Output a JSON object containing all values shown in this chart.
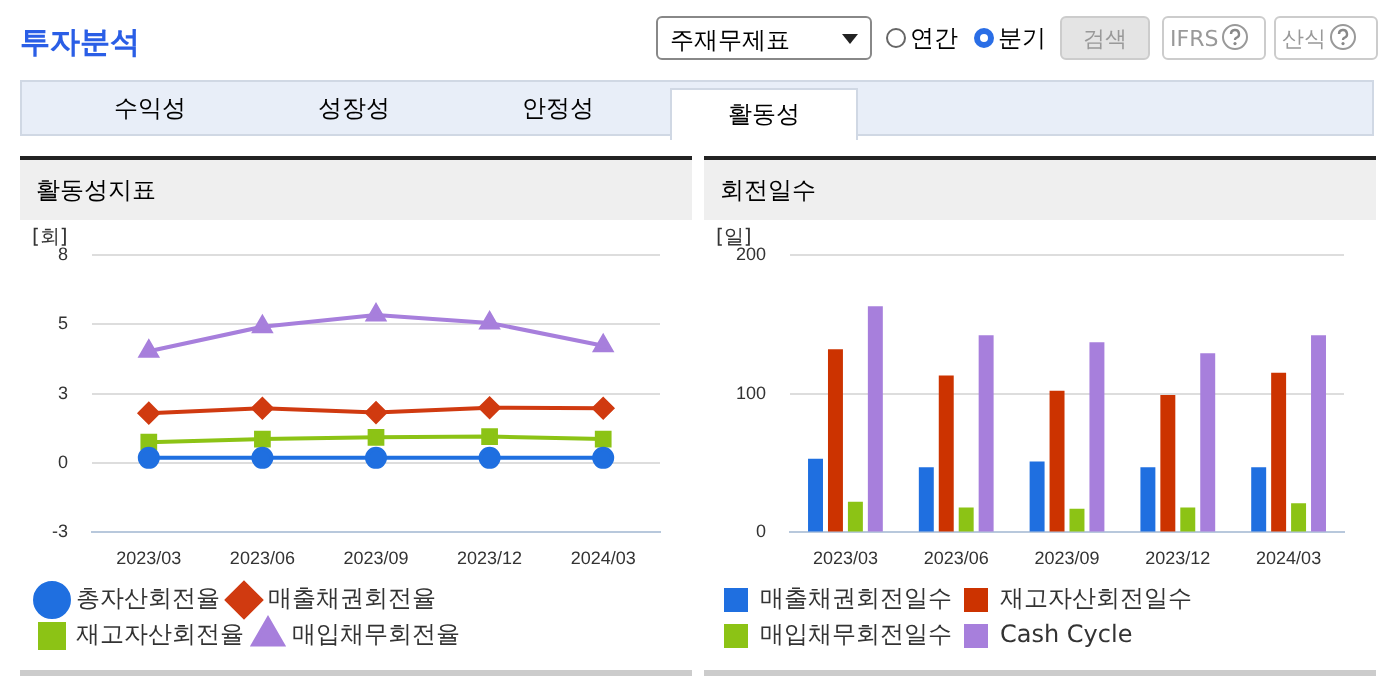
{
  "chart_data": [
    {
      "type": "other",
      "title": "투자분석",
      "annotations": [
        "주재무제표",
        "연간",
        "분기",
        "검색",
        "IFRS",
        "산식",
        "수익성",
        "성장성",
        "안정성",
        "활동성"
      ]
    },
    {
      "type": "line",
      "title": "활동성지표",
      "ylabel": "[회]",
      "categories": [
        "2023/03",
        "2023/06",
        "2023/09",
        "2023/12",
        "2024/03"
      ],
      "series": [
        {
          "name": "총자산회전율",
          "color": "#1f6fe0",
          "marker": "circle",
          "values": [
            0.2,
            0.2,
            0.2,
            0.2,
            0.2
          ]
        },
        {
          "name": "매출채권회전율",
          "color": "#d03a10",
          "marker": "diamond",
          "values": [
            1.94,
            2.13,
            1.96,
            2.15,
            2.13
          ]
        },
        {
          "name": "재고자산회전율",
          "color": "#8cc315",
          "marker": "square",
          "values": [
            0.81,
            0.93,
            1.0,
            1.03,
            0.93
          ]
        },
        {
          "name": "매입채무회전율",
          "color": "#a77fdc",
          "marker": "triangle",
          "values": [
            4.35,
            5.3,
            5.76,
            5.45,
            4.56
          ]
        }
      ],
      "ylim": [
        -2.7,
        8.1
      ],
      "yticks": [
        {
          "value": -2.7,
          "label": "-3"
        },
        0,
        {
          "value": 2.7,
          "label": "3"
        },
        {
          "value": 5.4,
          "label": "5"
        },
        {
          "value": 8.1,
          "label": "8"
        }
      ],
      "grid": "y",
      "legend": "bottom"
    },
    {
      "type": "bar",
      "title": "회전일수",
      "ylabel": "[일]",
      "categories": [
        "2023/03",
        "2023/06",
        "2023/09",
        "2023/12",
        "2024/03"
      ],
      "series": [
        {
          "name": "매출채권회전일수",
          "color": "#1f6fe0",
          "values": [
            53,
            47,
            51,
            47,
            47
          ]
        },
        {
          "name": "재고자산회전일수",
          "color": "#cc3300",
          "values": [
            132,
            113,
            102,
            99,
            115
          ]
        },
        {
          "name": "매입채무회전일수",
          "color": "#8cc315",
          "values": [
            22,
            18,
            17,
            18,
            21
          ]
        },
        {
          "name": "Cash Cycle",
          "color": "#a77fdc",
          "values": [
            163,
            142,
            137,
            129,
            142
          ]
        }
      ],
      "ylim": [
        0,
        200
      ],
      "yticks": [
        0,
        100,
        200
      ],
      "grid": "y",
      "legend": "bottom"
    }
  ]
}
